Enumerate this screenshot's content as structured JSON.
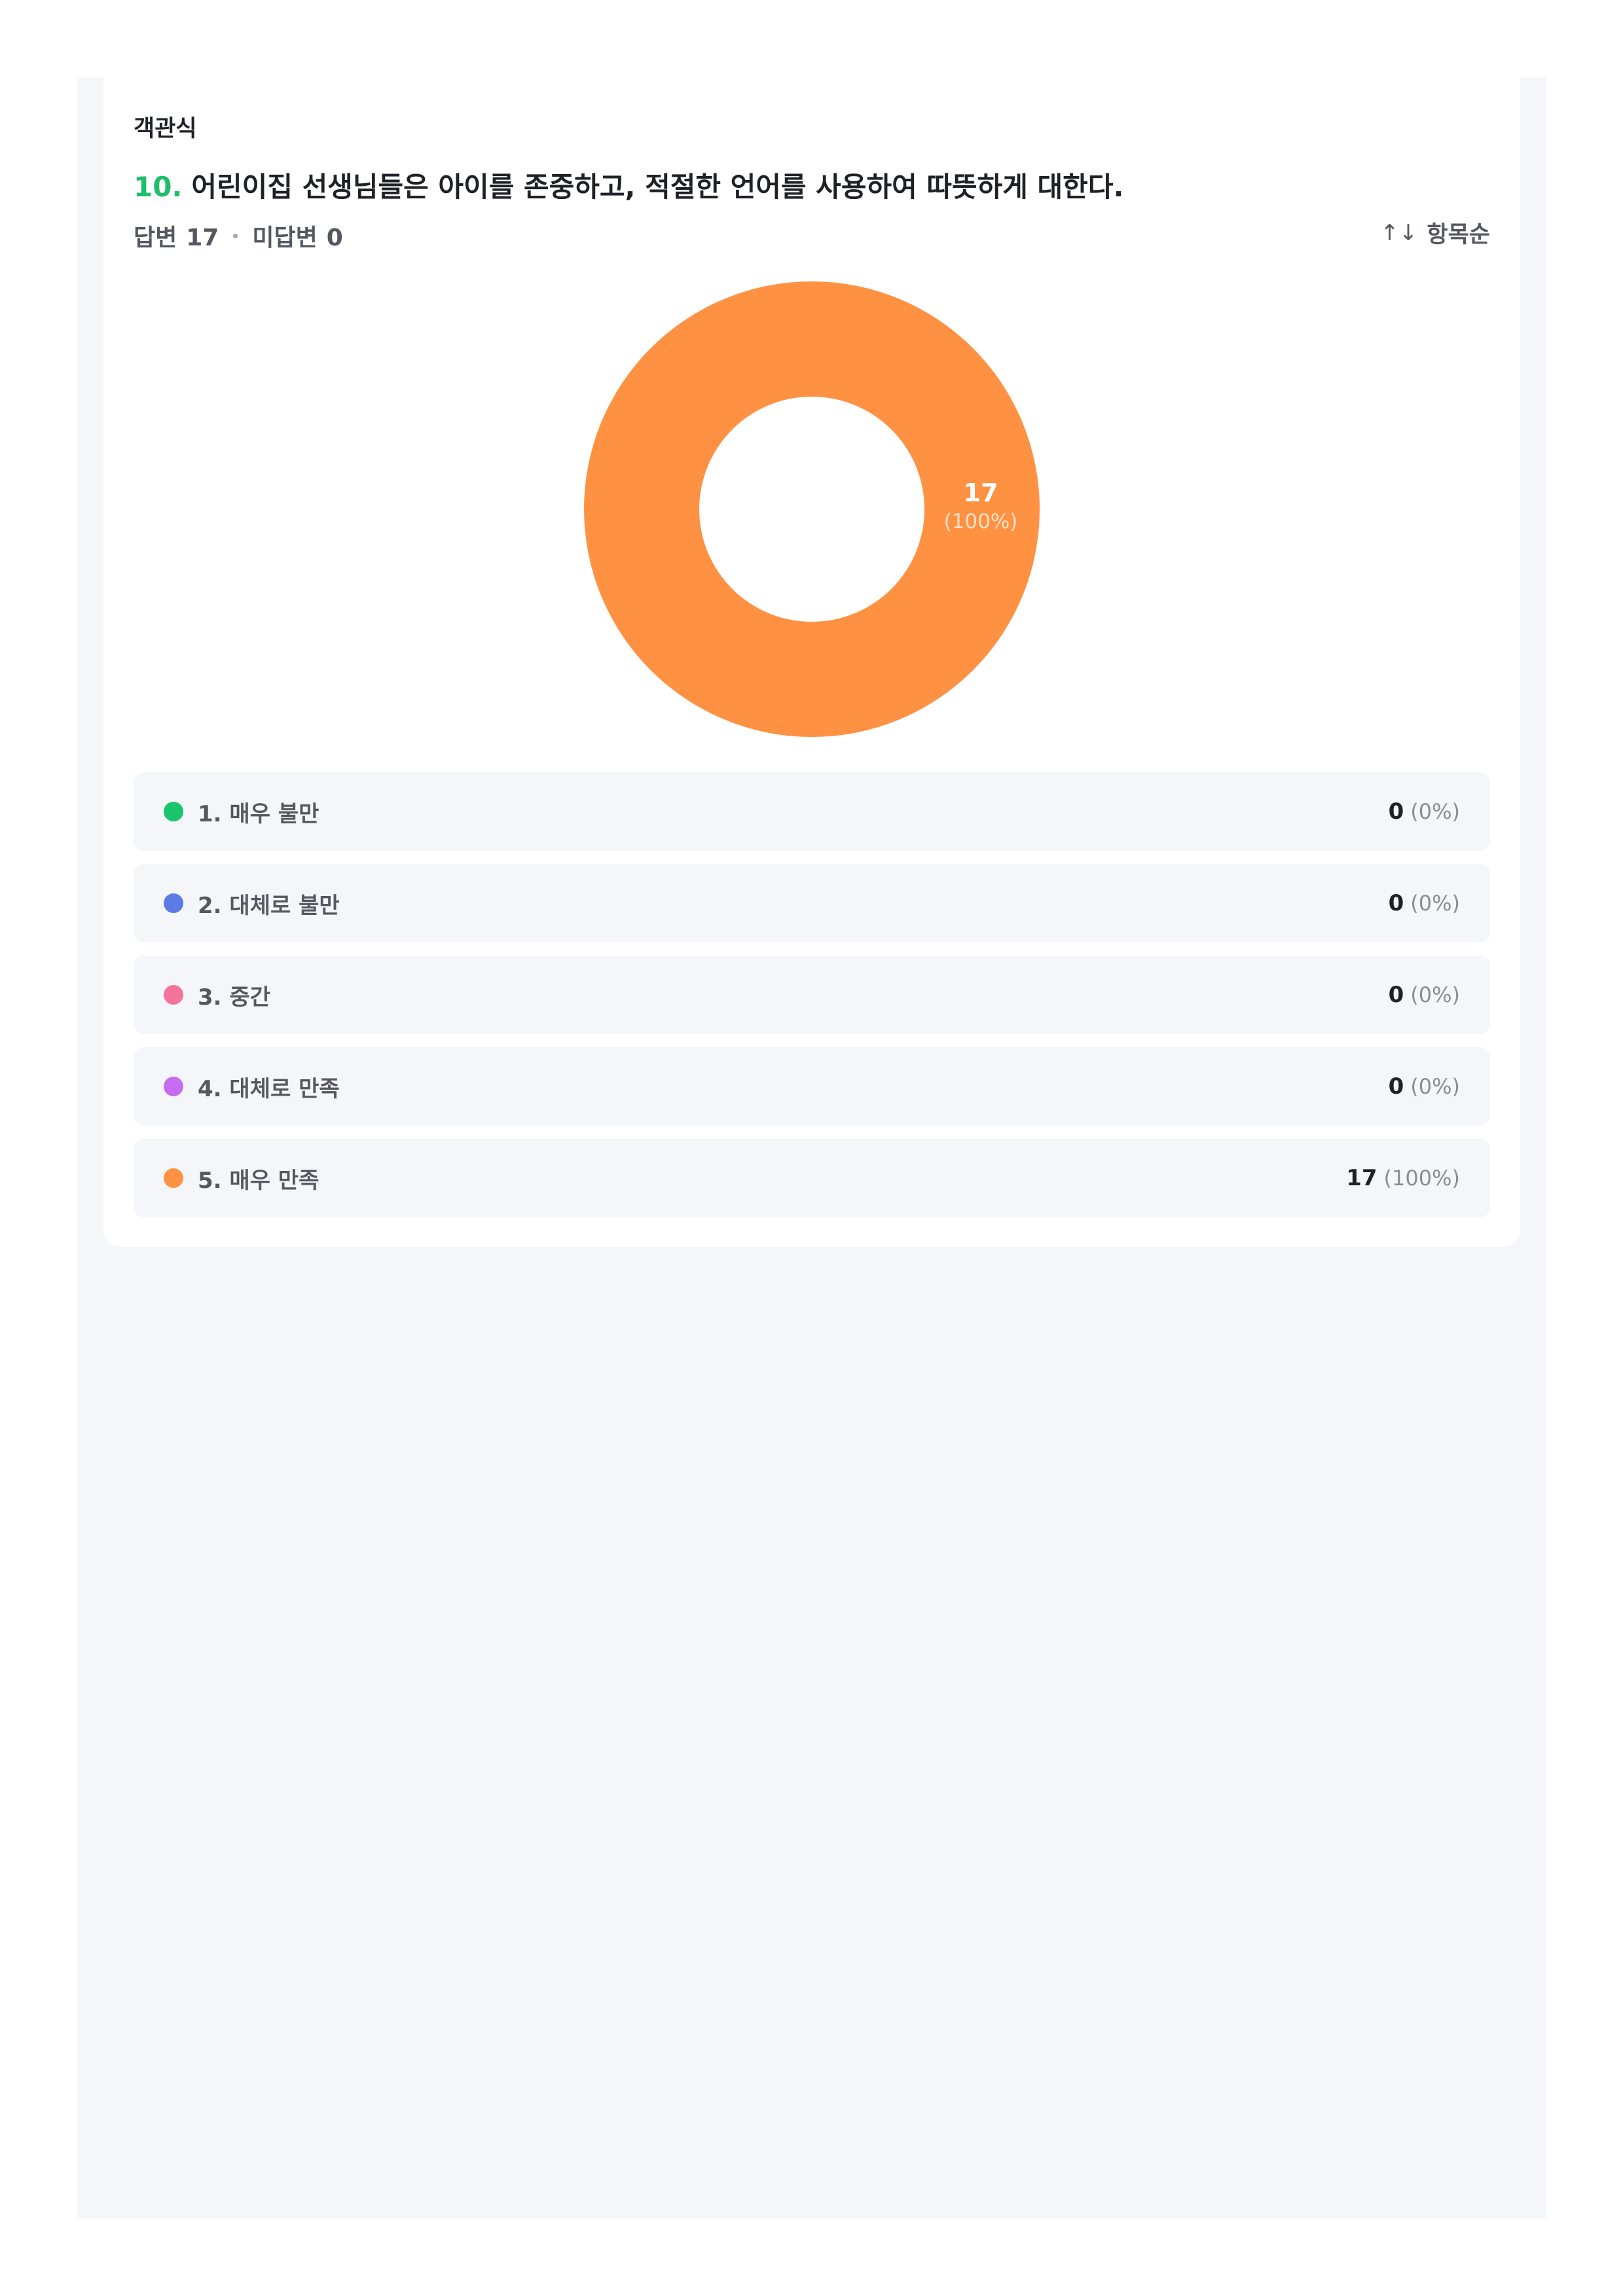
{
  "question": {
    "type_label": "객관식",
    "number": "10.",
    "title": "어린이집 선생님들은 아이를 존중하고, 적절한 언어를 사용하여 따뜻하게 대한다.",
    "answered_label": "답변",
    "answered_count": "17",
    "unanswered_label": "미답변",
    "unanswered_count": "0",
    "sort_icon": "sort-arrows-icon",
    "sort_label": "항목순"
  },
  "chart_data": {
    "type": "pie",
    "donut": true,
    "categories": [
      "1. 매우 불만",
      "2. 대체로 불만",
      "3. 중간",
      "4. 대체로 만족",
      "5. 매우 만족"
    ],
    "values": [
      0,
      0,
      0,
      0,
      17
    ],
    "colors": [
      "#19c46a",
      "#5b7be6",
      "#f4739a",
      "#c56cf0",
      "#ff9142"
    ],
    "slice_label_value": "17",
    "slice_label_percent": "(100%)"
  },
  "options": [
    {
      "label": "1. 매우 불만",
      "count": "0",
      "percent": "(0%)",
      "color": "#19c46a"
    },
    {
      "label": "2. 대체로 불만",
      "count": "0",
      "percent": "(0%)",
      "color": "#5b7be6"
    },
    {
      "label": "3. 중간",
      "count": "0",
      "percent": "(0%)",
      "color": "#f4739a"
    },
    {
      "label": "4. 대체로 만족",
      "count": "0",
      "percent": "(0%)",
      "color": "#c56cf0"
    },
    {
      "label": "5. 매우 만족",
      "count": "17",
      "percent": "(100%)",
      "color": "#ff9142"
    }
  ]
}
